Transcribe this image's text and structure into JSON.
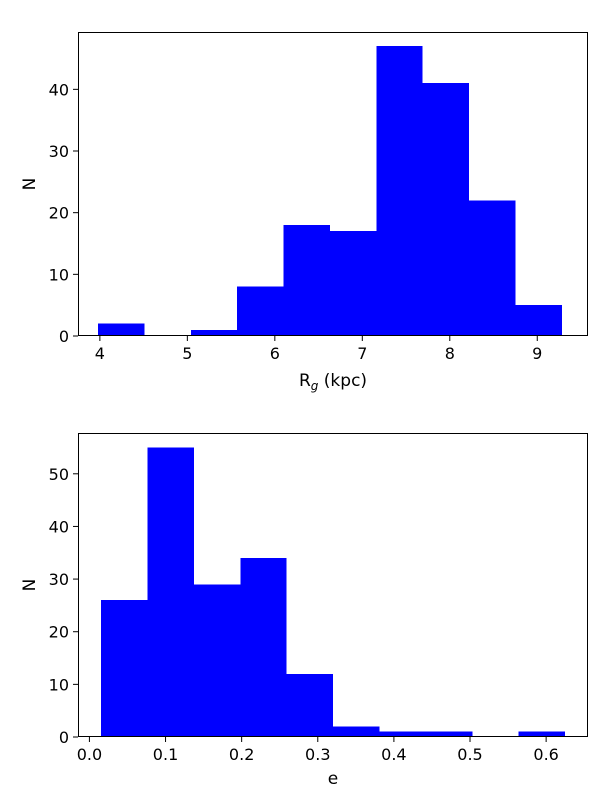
{
  "chart_data": [
    {
      "type": "bar",
      "histogram": true,
      "xlabel": "R",
      "xlabel_sub": "g",
      "xlabel_suffix": " (kpc)",
      "ylabel": "N",
      "xlim": [
        3.75,
        9.58
      ],
      "ylim": [
        0,
        49.3
      ],
      "xticks": [
        4,
        5,
        6,
        7,
        8,
        9
      ],
      "yticks": [
        0,
        10,
        20,
        30,
        40
      ],
      "bins": [
        {
          "x0": 3.98,
          "x1": 4.51,
          "value": 2
        },
        {
          "x0": 4.51,
          "x1": 5.04,
          "value": 0
        },
        {
          "x0": 5.04,
          "x1": 5.57,
          "value": 1
        },
        {
          "x0": 5.57,
          "x1": 6.1,
          "value": 8
        },
        {
          "x0": 6.1,
          "x1": 6.63,
          "value": 18
        },
        {
          "x0": 6.63,
          "x1": 7.16,
          "value": 17
        },
        {
          "x0": 7.16,
          "x1": 7.69,
          "value": 47
        },
        {
          "x0": 7.69,
          "x1": 8.22,
          "value": 41
        },
        {
          "x0": 8.22,
          "x1": 8.75,
          "value": 22
        },
        {
          "x0": 8.75,
          "x1": 9.28,
          "value": 5
        }
      ],
      "color": "#0000ff",
      "grid": false
    },
    {
      "type": "bar",
      "histogram": true,
      "xlabel": "e",
      "ylabel": "N",
      "xlim": [
        -0.015,
        0.655
      ],
      "ylim": [
        0,
        57.75
      ],
      "xticks": [
        0.0,
        0.1,
        0.2,
        0.3,
        0.4,
        0.5,
        0.6
      ],
      "yticks": [
        0,
        10,
        20,
        30,
        40,
        50
      ],
      "bins": [
        {
          "x0": 0.0155,
          "x1": 0.0764,
          "value": 26
        },
        {
          "x0": 0.0764,
          "x1": 0.1374,
          "value": 55
        },
        {
          "x0": 0.1374,
          "x1": 0.1983,
          "value": 29
        },
        {
          "x0": 0.1983,
          "x1": 0.2592,
          "value": 34
        },
        {
          "x0": 0.2592,
          "x1": 0.3202,
          "value": 12
        },
        {
          "x0": 0.3202,
          "x1": 0.3811,
          "value": 2
        },
        {
          "x0": 0.3811,
          "x1": 0.4421,
          "value": 1
        },
        {
          "x0": 0.4421,
          "x1": 0.503,
          "value": 1
        },
        {
          "x0": 0.503,
          "x1": 0.5639,
          "value": 0
        },
        {
          "x0": 0.5639,
          "x1": 0.6249,
          "value": 1
        }
      ],
      "color": "#0000ff",
      "grid": false
    }
  ]
}
